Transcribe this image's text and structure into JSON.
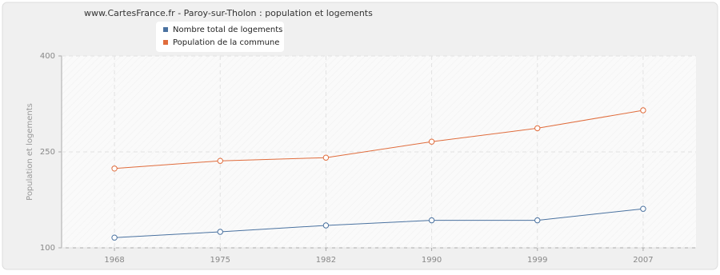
{
  "chart_data": {
    "type": "line",
    "title": "www.CartesFrance.fr - Paroy-sur-Tholon : population et logements",
    "y_label": "Population et logements",
    "categories": [
      "1968",
      "1975",
      "1982",
      "1990",
      "1999",
      "2007"
    ],
    "series": [
      {
        "name": "Nombre total de logements",
        "color": "#4a72a0",
        "values": [
          116,
          125,
          135,
          143,
          143,
          161
        ]
      },
      {
        "name": "Population de la commune",
        "color": "#e06c3c",
        "values": [
          224,
          236,
          241,
          266,
          287,
          315
        ]
      }
    ],
    "ylim": [
      100,
      400
    ],
    "yticks": [
      100,
      250,
      400
    ],
    "grid": true
  }
}
